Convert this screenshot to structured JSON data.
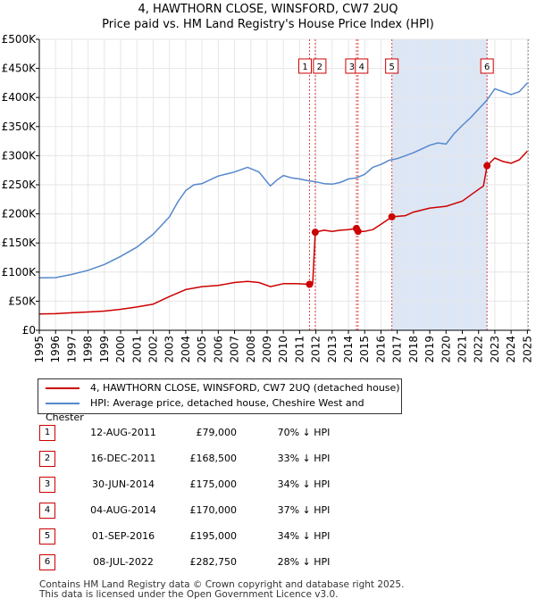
{
  "title": {
    "line1": "4, HAWTHORN CLOSE, WINSFORD, CW7 2UQ",
    "line2": "Price paid vs. HM Land Registry's House Price Index (HPI)"
  },
  "colors": {
    "price_paid": "#cc0000",
    "hpi": "#5588cc",
    "shade": "#dde6f5",
    "marker_border": "#cc0000",
    "grid": "#e6e6e6"
  },
  "chart_data": {
    "type": "line",
    "title": "Price paid vs. HM Land Registry's House Price Index (HPI)",
    "xlabel": "",
    "ylabel": "",
    "xlim": [
      1995,
      2025.2
    ],
    "ylim": [
      0,
      500000
    ],
    "y_ticks": [
      0,
      50000,
      100000,
      150000,
      200000,
      250000,
      300000,
      350000,
      400000,
      450000,
      500000
    ],
    "y_tick_labels": [
      "£0",
      "£50K",
      "£100K",
      "£150K",
      "£200K",
      "£250K",
      "£300K",
      "£350K",
      "£400K",
      "£450K",
      "£500K"
    ],
    "x_ticks": [
      1995,
      1996,
      1997,
      1998,
      1999,
      2000,
      2001,
      2002,
      2003,
      2004,
      2005,
      2006,
      2007,
      2008,
      2009,
      2010,
      2011,
      2012,
      2013,
      2014,
      2015,
      2016,
      2017,
      2018,
      2019,
      2020,
      2021,
      2022,
      2023,
      2024,
      2025
    ],
    "x_tick_labels": [
      "1995",
      "1996",
      "1997",
      "1998",
      "1999",
      "2000",
      "2001",
      "2002",
      "2003",
      "2004",
      "2005",
      "2006",
      "2007",
      "2008",
      "2009",
      "2010",
      "2011",
      "2012",
      "2013",
      "2014",
      "2015",
      "2016",
      "2017",
      "2018",
      "2019",
      "2020",
      "2021",
      "2022",
      "2023",
      "2024",
      "2025"
    ],
    "grid": true,
    "shaded_range": [
      2016.67,
      2022.52
    ],
    "series": [
      {
        "name": "4, HAWTHORN CLOSE, WINSFORD, CW7 2UQ (detached house)",
        "color": "#cc0000",
        "x": [
          1995.0,
          1996.0,
          1997.0,
          1998.0,
          1999.0,
          2000.0,
          2001.0,
          2002.0,
          2003.0,
          2004.0,
          2005.0,
          2006.0,
          2007.0,
          2007.8,
          2008.5,
          2009.2,
          2010.0,
          2010.8,
          2011.61,
          2011.8,
          2011.96,
          2012.5,
          2013.0,
          2013.5,
          2014.0,
          2014.49,
          2014.59,
          2015.0,
          2015.5,
          2016.0,
          2016.67,
          2017.5,
          2018.0,
          2019.0,
          2020.0,
          2021.0,
          2021.5,
          2022.0,
          2022.3,
          2022.52,
          2023.0,
          2023.5,
          2024.0,
          2024.5,
          2025.0
        ],
        "values": [
          28000,
          28500,
          30000,
          31500,
          33000,
          36000,
          40000,
          45000,
          58000,
          70000,
          75000,
          77000,
          82000,
          84000,
          82000,
          75000,
          80000,
          80000,
          79000,
          79000,
          168500,
          172000,
          170000,
          172000,
          173000,
          175000,
          170000,
          170000,
          173000,
          182000,
          195000,
          197000,
          203000,
          210000,
          213000,
          222000,
          232000,
          242000,
          248000,
          282750,
          296000,
          290000,
          287000,
          293000,
          308000
        ]
      },
      {
        "name": "HPI: Average price, detached house, Cheshire West and Chester",
        "color": "#5588cc",
        "x": [
          1995.0,
          1996.0,
          1997.0,
          1998.0,
          1999.0,
          2000.0,
          2001.0,
          2002.0,
          2003.0,
          2003.5,
          2004.0,
          2004.5,
          2005.0,
          2006.0,
          2007.0,
          2007.8,
          2008.5,
          2009.2,
          2009.6,
          2010.0,
          2010.5,
          2011.0,
          2011.5,
          2012.0,
          2012.5,
          2013.0,
          2013.5,
          2014.0,
          2014.5,
          2015.0,
          2015.5,
          2016.0,
          2016.5,
          2017.0,
          2017.5,
          2018.0,
          2019.0,
          2019.5,
          2020.0,
          2020.5,
          2021.0,
          2021.5,
          2022.0,
          2022.5,
          2023.0,
          2023.5,
          2024.0,
          2024.5,
          2025.0
        ],
        "values": [
          90000,
          90500,
          96000,
          103000,
          113000,
          127000,
          143000,
          165000,
          195000,
          220000,
          240000,
          250000,
          252000,
          265000,
          272000,
          280000,
          272000,
          248000,
          258000,
          266000,
          262000,
          260000,
          257000,
          255000,
          252000,
          251000,
          254000,
          260000,
          262000,
          268000,
          280000,
          285000,
          292000,
          295000,
          300000,
          305000,
          318000,
          322000,
          320000,
          338000,
          352000,
          365000,
          380000,
          395000,
          415000,
          410000,
          405000,
          410000,
          425000
        ]
      }
    ],
    "sales": [
      {
        "num": "1",
        "x": 2011.61,
        "price": 79000
      },
      {
        "num": "2",
        "x": 2011.96,
        "price": 168500
      },
      {
        "num": "3",
        "x": 2014.49,
        "price": 175000
      },
      {
        "num": "4",
        "x": 2014.59,
        "price": 170000
      },
      {
        "num": "5",
        "x": 2016.67,
        "price": 195000
      },
      {
        "num": "6",
        "x": 2022.52,
        "price": 282750
      }
    ]
  },
  "legend": {
    "price_paid_label": "4, HAWTHORN CLOSE, WINSFORD, CW7 2UQ (detached house)",
    "hpi_label": "HPI: Average price, detached house, Cheshire West and Chester"
  },
  "sales_table": [
    {
      "num": "1",
      "date": "12-AUG-2011",
      "price": "£79,000",
      "hpi": "70% ↓ HPI"
    },
    {
      "num": "2",
      "date": "16-DEC-2011",
      "price": "£168,500",
      "hpi": "33% ↓ HPI"
    },
    {
      "num": "3",
      "date": "30-JUN-2014",
      "price": "£175,000",
      "hpi": "34% ↓ HPI"
    },
    {
      "num": "4",
      "date": "04-AUG-2014",
      "price": "£170,000",
      "hpi": "37% ↓ HPI"
    },
    {
      "num": "5",
      "date": "01-SEP-2016",
      "price": "£195,000",
      "hpi": "34% ↓ HPI"
    },
    {
      "num": "6",
      "date": "08-JUL-2022",
      "price": "£282,750",
      "hpi": "28% ↓ HPI"
    }
  ],
  "footer": {
    "line1": "Contains HM Land Registry data © Crown copyright and database right 2025.",
    "line2": "This data is licensed under the Open Government Licence v3.0."
  }
}
